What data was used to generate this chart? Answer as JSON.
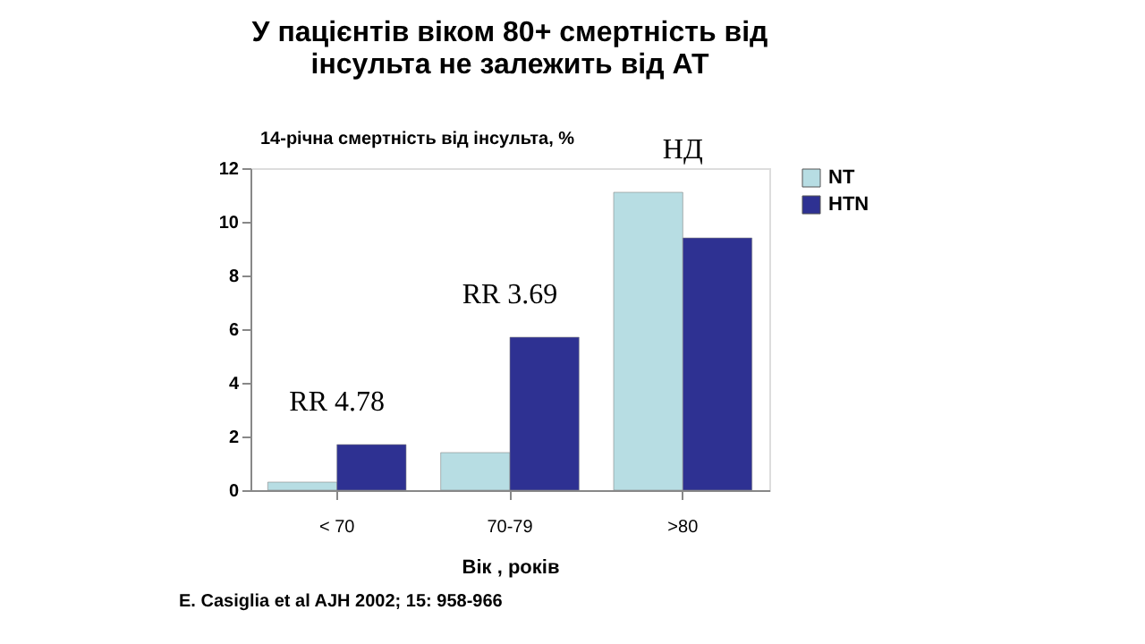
{
  "chart_data": {
    "type": "bar",
    "title": [
      "У пацієнтів  віком 80+ смертність від",
      "інсульта не залежить від АТ"
    ],
    "ylabel": "14-річна смертність від інсульта, %",
    "xlabel": "Вік , років",
    "categories": [
      "< 70",
      "70-79",
      ">80"
    ],
    "series": [
      {
        "name": "NT",
        "color": "#b7dde3",
        "values": [
          0.3,
          1.4,
          11.1
        ]
      },
      {
        "name": "HTN",
        "color": "#2e3192",
        "values": [
          1.7,
          5.7,
          9.4
        ]
      }
    ],
    "ylim": [
      0,
      12
    ],
    "yticks": [
      0,
      2,
      4,
      6,
      8,
      10,
      12
    ],
    "grid": false,
    "legend": "right",
    "annotations": [
      "RR 4.78",
      "RR 3.69",
      "НД",
      "E. Casiglia et al AJH 2002; 15: 958-966"
    ]
  }
}
